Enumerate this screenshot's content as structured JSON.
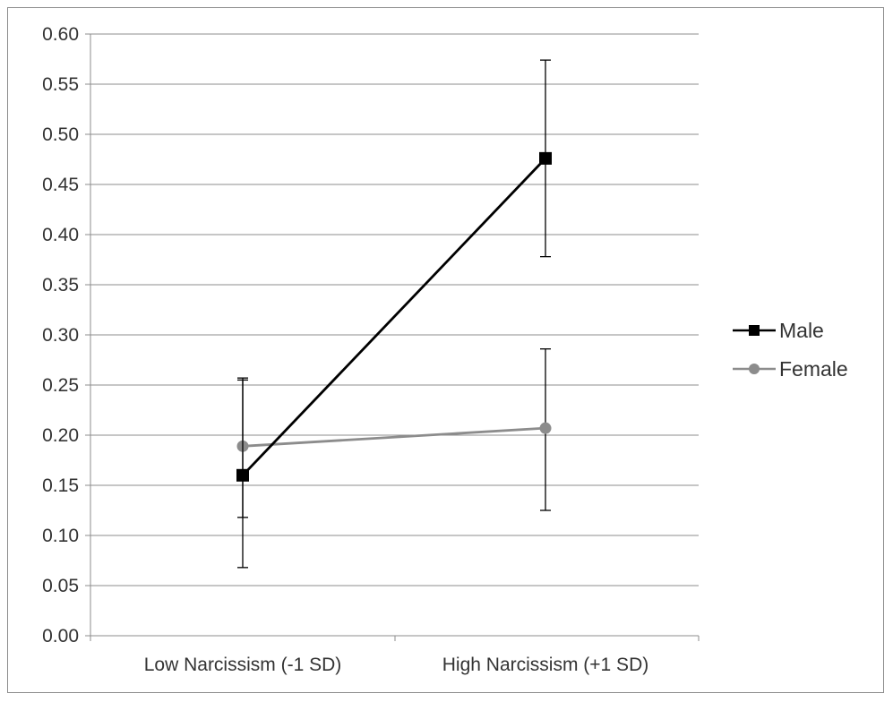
{
  "chart_data": {
    "type": "line",
    "categories": [
      "Low Narcissism (-1 SD)",
      "High Narcissism (+1 SD)"
    ],
    "ylim": [
      0,
      0.6
    ],
    "yticks": [
      "0.00",
      "0.05",
      "0.10",
      "0.15",
      "0.20",
      "0.25",
      "0.30",
      "0.35",
      "0.40",
      "0.45",
      "0.50",
      "0.55",
      "0.60"
    ],
    "grid": true,
    "legend_position": "right",
    "series": [
      {
        "name": "Male",
        "values": [
          0.16,
          0.476
        ],
        "error_low": [
          0.068,
          0.378
        ],
        "error_high": [
          0.257,
          0.574
        ],
        "color": "#000000",
        "marker": "square"
      },
      {
        "name": "Female",
        "values": [
          0.189,
          0.207
        ],
        "error_low": [
          0.118,
          0.125
        ],
        "error_high": [
          0.255,
          0.286
        ],
        "color": "#8c8c8c",
        "marker": "circle"
      }
    ]
  }
}
